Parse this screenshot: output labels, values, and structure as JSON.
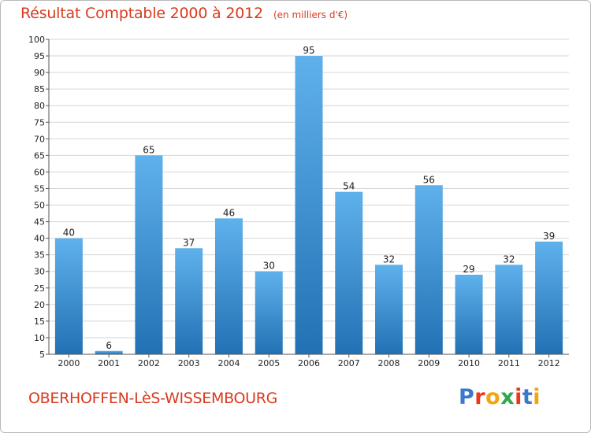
{
  "header": {
    "title": "Résultat Comptable 2000 à 2012",
    "subtitle": "(en milliers d'€)"
  },
  "footer": {
    "location": "OBERHOFFEN-LèS-WISSEMBOURG",
    "logo": "Proxiti",
    "logo_colors": [
      "#3a78c9",
      "#e8391d",
      "#f4a40f",
      "#2ea84a",
      "#e8391d",
      "#3a78c9",
      "#f4a40f"
    ]
  },
  "colors": {
    "bar_light": "#5fb1ec",
    "bar_dark": "#2271b4",
    "grid": "#d6d6d6",
    "text_accent": "#d93a1e"
  },
  "chart_data": {
    "type": "bar",
    "title": "Résultat Comptable 2000 à 2012",
    "subtitle": "(en milliers d'€)",
    "categories": [
      "2000",
      "2001",
      "2002",
      "2003",
      "2004",
      "2005",
      "2006",
      "2007",
      "2008",
      "2009",
      "2010",
      "2011",
      "2012"
    ],
    "values": [
      40,
      6,
      65,
      37,
      46,
      30,
      95,
      54,
      32,
      56,
      29,
      32,
      39
    ],
    "xlabel": "",
    "ylabel": "",
    "ylim": [
      5,
      100
    ],
    "yticks": [
      5,
      10,
      15,
      20,
      25,
      30,
      35,
      40,
      45,
      50,
      55,
      60,
      65,
      70,
      75,
      80,
      85,
      90,
      95,
      100
    ],
    "grid": true,
    "legend": "none"
  }
}
